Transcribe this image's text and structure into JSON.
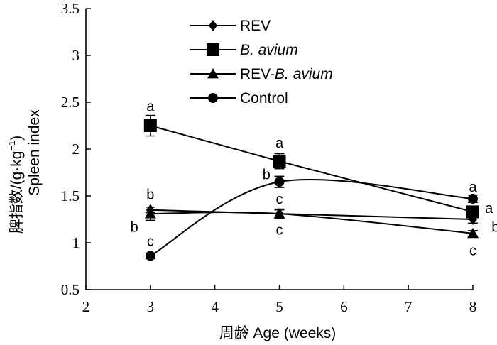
{
  "chart_data": {
    "type": "line",
    "xlabel": "周龄 Age (weeks)",
    "ylabel_cn": "脾指数/(g·kg",
    "ylabel_sup": "−1",
    "ylabel_close": ")",
    "ylabel_en": "Spleen index",
    "xlim": [
      2,
      8
    ],
    "ylim": [
      0.5,
      3.5
    ],
    "xticks": [
      "2",
      "3",
      "4",
      "5",
      "6",
      "7",
      "8"
    ],
    "yticks": [
      "0.5",
      "1",
      "1.5",
      "2",
      "2.5",
      "3",
      "3.5"
    ],
    "x": [
      3,
      5,
      8
    ],
    "series": [
      {
        "name": "REV",
        "name_parts": [
          {
            "t": "REV",
            "i": false
          }
        ],
        "marker": "diamond",
        "values": [
          1.35,
          1.31,
          1.25
        ],
        "errors": [
          0.03,
          0.04,
          0.04
        ]
      },
      {
        "name": "B. avium",
        "name_parts": [
          {
            "t": "B. avium",
            "i": true
          }
        ],
        "marker": "square",
        "values": [
          2.25,
          1.87,
          1.33
        ],
        "errors": [
          0.11,
          0.08,
          0.05
        ]
      },
      {
        "name": "REV-B. avium",
        "name_parts": [
          {
            "t": "REV-",
            "i": false
          },
          {
            "t": "B. avium",
            "i": true
          }
        ],
        "marker": "triangle",
        "values": [
          1.31,
          1.31,
          1.1
        ],
        "errors": [
          0.07,
          0.05,
          0.03
        ]
      },
      {
        "name": "Control",
        "name_parts": [
          {
            "t": "Control",
            "i": false
          }
        ],
        "marker": "circle",
        "values": [
          0.86,
          1.65,
          1.47
        ],
        "errors": [
          0.03,
          0.06,
          0.04
        ]
      }
    ],
    "annotations": [
      {
        "label": "a",
        "x": 3,
        "y": 2.46
      },
      {
        "label": "b",
        "x": 3,
        "y": 1.52
      },
      {
        "label": "b",
        "x": 2.75,
        "y": 1.17
      },
      {
        "label": "c",
        "x": 3,
        "y": 1.02
      },
      {
        "label": "a",
        "x": 5,
        "y": 2.07
      },
      {
        "label": "b",
        "x": 4.8,
        "y": 1.73
      },
      {
        "label": "c",
        "x": 5,
        "y": 1.47
      },
      {
        "label": "c",
        "x": 5,
        "y": 1.14
      },
      {
        "label": "a",
        "x": 8,
        "y": 1.6
      },
      {
        "label": "a",
        "x": 8.25,
        "y": 1.37
      },
      {
        "label": "b",
        "x": 8.35,
        "y": 1.17
      },
      {
        "label": "c",
        "x": 8,
        "y": 0.92
      }
    ]
  }
}
